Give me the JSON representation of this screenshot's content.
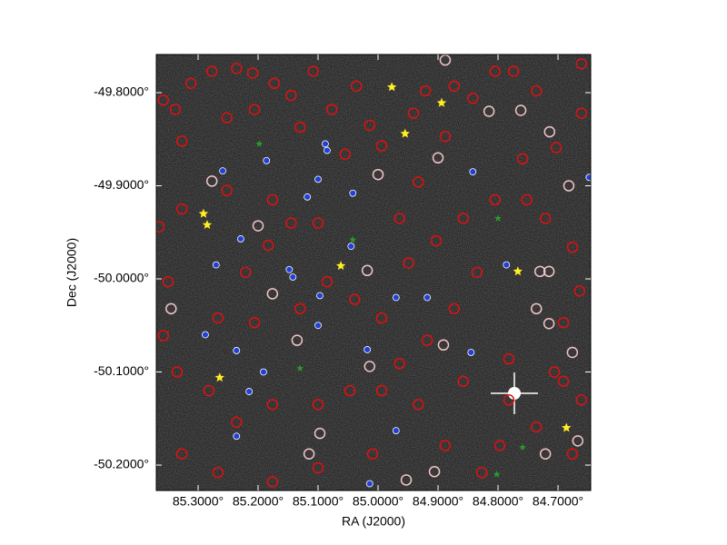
{
  "chart_data": {
    "type": "scatter",
    "xlabel": "RA (J2000)",
    "ylabel": "Dec (J2000)",
    "background": "#1c1c1c",
    "xlim": [
      85.3697,
      84.6455
    ],
    "ylim": [
      -50.2273,
      -49.759
    ],
    "xticks": [
      {
        "value": 85.3,
        "label": "85.3000°"
      },
      {
        "value": 85.2,
        "label": "85.2000°"
      },
      {
        "value": 85.1,
        "label": "85.1000°"
      },
      {
        "value": 85.0,
        "label": "85.0000°"
      },
      {
        "value": 84.9,
        "label": "84.9000°"
      },
      {
        "value": 84.8,
        "label": "84.8000°"
      },
      {
        "value": 84.7,
        "label": "84.7000°"
      }
    ],
    "yticks": [
      {
        "value": -49.8,
        "label": "-49.8000°"
      },
      {
        "value": -49.9,
        "label": "-49.9000°"
      },
      {
        "value": -50.0,
        "label": "-50.0000°"
      },
      {
        "value": -50.1,
        "label": "-50.1000°"
      },
      {
        "value": -50.2,
        "label": "-50.2000°"
      }
    ],
    "series": [
      {
        "color": "#e01010",
        "marker": "ring",
        "x": [
          85.358,
          85.338,
          85.312,
          85.277,
          85.236,
          85.209,
          85.173,
          85.145,
          85.108,
          85.077,
          85.036,
          85.014,
          84.941,
          84.921,
          84.873,
          84.842,
          84.805,
          84.774,
          84.736,
          84.661,
          84.661,
          84.703,
          84.759,
          84.805,
          84.752,
          84.721,
          84.676,
          84.664,
          84.691,
          84.706,
          84.661,
          84.736,
          84.797,
          84.827,
          84.888,
          84.933,
          84.994,
          85.047,
          85.1,
          85.176,
          85.236,
          85.282,
          85.335,
          85.358,
          85.35,
          85.365,
          85.327,
          85.252,
          85.176,
          85.145,
          85.183,
          85.221,
          85.267,
          85.206,
          85.13,
          85.085,
          85.039,
          84.994,
          84.949,
          84.903,
          84.858,
          84.835,
          84.873,
          84.918,
          84.964,
          84.858,
          84.782,
          84.782,
          84.691,
          84.676,
          85.327,
          85.267,
          85.176,
          85.1,
          85.009,
          85.055,
          84.994,
          84.933,
          84.888,
          85.252,
          85.327,
          85.13,
          85.1,
          84.964,
          85.206
        ],
        "y": [
          -49.808,
          -49.818,
          -49.79,
          -49.777,
          -49.774,
          -49.779,
          -49.79,
          -49.803,
          -49.777,
          -49.818,
          -49.793,
          -49.835,
          -49.822,
          -49.798,
          -49.793,
          -49.806,
          -49.777,
          -49.777,
          -49.798,
          -49.769,
          -49.822,
          -49.859,
          -49.871,
          -49.915,
          -49.915,
          -49.935,
          -49.966,
          -50.013,
          -50.047,
          -50.1,
          -50.13,
          -50.159,
          -50.179,
          -50.208,
          -50.179,
          -50.135,
          -50.12,
          -50.12,
          -50.135,
          -50.135,
          -50.154,
          -50.12,
          -50.1,
          -50.061,
          -50.003,
          -49.944,
          -49.925,
          -49.905,
          -49.915,
          -49.94,
          -49.964,
          -49.993,
          -50.042,
          -50.047,
          -50.032,
          -50.003,
          -50.022,
          -50.042,
          -49.983,
          -49.959,
          -49.935,
          -49.993,
          -50.032,
          -50.066,
          -50.091,
          -50.11,
          -50.086,
          -50.13,
          -50.11,
          -50.188,
          -50.188,
          -50.208,
          -50.218,
          -50.203,
          -50.188,
          -49.866,
          -49.857,
          -49.896,
          -49.847,
          -49.827,
          -49.852,
          -49.837,
          -49.94,
          -49.935,
          -49.818
        ]
      },
      {
        "color": "#f2c4c8",
        "marker": "ring",
        "x": [
          85.277,
          85.2,
          85.176,
          85.135,
          85.097,
          85.115,
          85.014,
          85.0,
          84.9,
          84.815,
          84.762,
          84.714,
          84.682,
          84.73,
          84.715,
          84.736,
          84.715,
          84.676,
          84.721,
          84.667,
          84.891,
          84.906,
          85.018,
          85.345,
          84.888,
          84.953
        ],
        "y": [
          -49.895,
          -49.943,
          -50.016,
          -50.066,
          -50.166,
          -50.188,
          -50.094,
          -49.888,
          -49.87,
          -49.82,
          -49.819,
          -49.842,
          -49.9,
          -49.992,
          -49.992,
          -50.032,
          -50.048,
          -50.079,
          -50.188,
          -50.174,
          -50.071,
          -50.207,
          -49.991,
          -50.032,
          -49.765,
          -50.216
        ]
      },
      {
        "color": "#2040d8",
        "marker": "dot",
        "x": [
          85.259,
          85.186,
          85.088,
          85.085,
          85.042,
          85.118,
          85.229,
          85.27,
          85.148,
          85.142,
          85.045,
          84.97,
          84.918,
          85.1,
          85.288,
          85.236,
          85.018,
          84.845,
          85.191,
          85.215,
          84.97,
          85.236,
          84.842,
          84.648,
          84.786,
          85.097,
          85.014,
          85.1
        ],
        "y": [
          -49.884,
          -49.873,
          -49.855,
          -49.862,
          -49.908,
          -49.912,
          -49.957,
          -49.985,
          -49.99,
          -49.998,
          -49.965,
          -50.02,
          -50.02,
          -50.05,
          -50.06,
          -50.077,
          -50.076,
          -50.079,
          -50.1,
          -50.121,
          -50.163,
          -50.169,
          -49.885,
          -49.891,
          -49.985,
          -50.018,
          -50.22,
          -49.893
        ]
      },
      {
        "color": "#2a9a2a",
        "marker": "smallstar",
        "x": [
          85.042,
          84.8,
          85.13,
          85.198,
          84.759,
          84.802
        ],
        "y": [
          -49.958,
          -49.935,
          -50.096,
          -49.855,
          -50.181,
          -50.21
        ]
      },
      {
        "color": "#ffee22",
        "marker": "star",
        "x": [
          84.977,
          84.894,
          84.955,
          85.291,
          85.285,
          85.062,
          84.767,
          85.264,
          84.686
        ],
        "y": [
          -49.794,
          -49.811,
          -49.844,
          -49.93,
          -49.942,
          -49.986,
          -49.992,
          -50.106,
          -50.16
        ]
      }
    ]
  }
}
